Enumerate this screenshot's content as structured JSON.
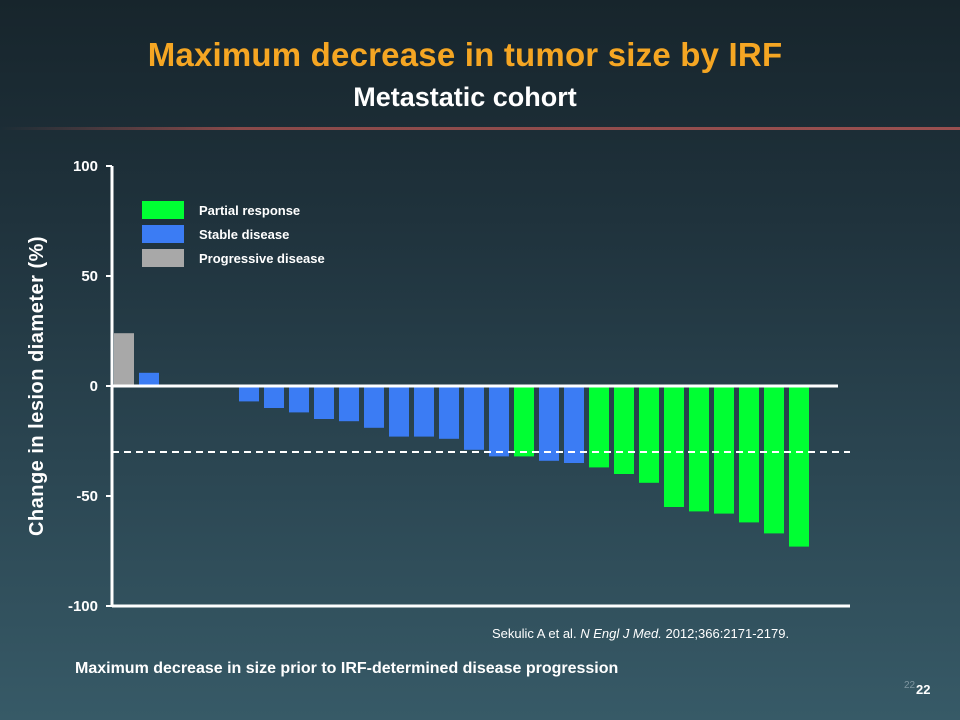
{
  "slide": {
    "title": "Maximum decrease in tumor size by IRF",
    "subtitle": "Metastatic cohort",
    "citation_authors": "Sekulic A et al.",
    "citation_journal": "N Engl J Med.",
    "citation_details": "2012;366:2171-2179.",
    "page_number_small": "22",
    "page_number": "22"
  },
  "colors": {
    "partial_response": "#00ff33",
    "stable_disease": "#3b7cf4",
    "progressive_disease": "#a8a8a8",
    "accent_title": "#f5a623"
  },
  "chart_data": {
    "type": "bar",
    "title": "",
    "xlabel": "Maximum decrease in size prior to IRF-determined disease progression",
    "ylabel": "Change in lesion diameter (%)",
    "ylim": [
      -100,
      100
    ],
    "yticks": [
      "100",
      "50",
      "0",
      "-50",
      "-100"
    ],
    "ytick_values": [
      100,
      50,
      0,
      -50,
      -100
    ],
    "threshold_line": -30,
    "legend": [
      {
        "label": "Partial response",
        "color_key": "partial_response"
      },
      {
        "label": "Stable disease",
        "color_key": "stable_disease"
      },
      {
        "label": "Progressive disease",
        "color_key": "progressive_disease"
      }
    ],
    "legend_position": "top-left",
    "bars": [
      {
        "value": 24,
        "category": "progressive_disease"
      },
      {
        "value": 6,
        "category": "stable_disease"
      },
      {
        "value": 0,
        "category": "stable_disease"
      },
      {
        "value": 0,
        "category": "stable_disease"
      },
      {
        "value": 0,
        "category": "stable_disease"
      },
      {
        "value": -7,
        "category": "stable_disease"
      },
      {
        "value": -10,
        "category": "stable_disease"
      },
      {
        "value": -12,
        "category": "stable_disease"
      },
      {
        "value": -15,
        "category": "stable_disease"
      },
      {
        "value": -16,
        "category": "stable_disease"
      },
      {
        "value": -19,
        "category": "stable_disease"
      },
      {
        "value": -23,
        "category": "stable_disease"
      },
      {
        "value": -23,
        "category": "stable_disease"
      },
      {
        "value": -24,
        "category": "stable_disease"
      },
      {
        "value": -29,
        "category": "stable_disease"
      },
      {
        "value": -32,
        "category": "stable_disease"
      },
      {
        "value": -32,
        "category": "partial_response"
      },
      {
        "value": -34,
        "category": "stable_disease"
      },
      {
        "value": -35,
        "category": "stable_disease"
      },
      {
        "value": -37,
        "category": "partial_response"
      },
      {
        "value": -40,
        "category": "partial_response"
      },
      {
        "value": -44,
        "category": "partial_response"
      },
      {
        "value": -55,
        "category": "partial_response"
      },
      {
        "value": -57,
        "category": "partial_response"
      },
      {
        "value": -58,
        "category": "partial_response"
      },
      {
        "value": -62,
        "category": "partial_response"
      },
      {
        "value": -67,
        "category": "partial_response"
      },
      {
        "value": -73,
        "category": "partial_response"
      }
    ]
  }
}
